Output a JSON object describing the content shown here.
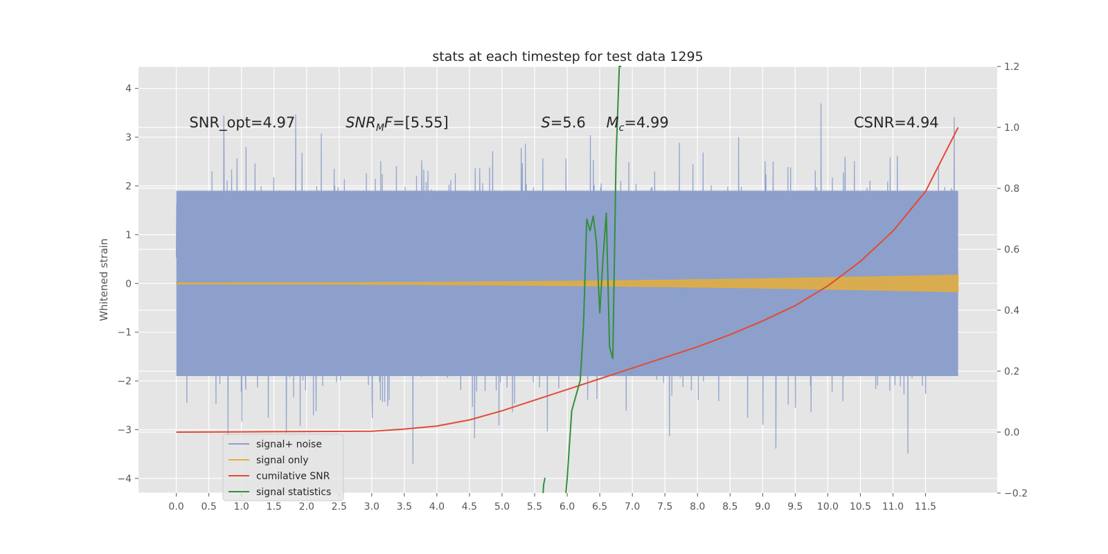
{
  "chart_data": {
    "type": "line",
    "title": "stats at each timestep for test data 1295",
    "ylabel": "Whitened strain",
    "xlabel": "",
    "xlim": [
      -0.58,
      12.6
    ],
    "ylim": [
      -4.3,
      4.45
    ],
    "y2lim": [
      -0.2,
      1.2
    ],
    "xticks": [
      0.0,
      0.5,
      1.0,
      1.5,
      2.0,
      2.5,
      3.0,
      3.5,
      4.0,
      4.5,
      5.0,
      5.5,
      6.0,
      6.5,
      7.0,
      7.5,
      8.0,
      8.5,
      9.0,
      9.5,
      10.0,
      10.5,
      11.0,
      11.5
    ],
    "xtick_labels": [
      "0.0",
      "0.5",
      "1.0",
      "1.5",
      "2.0",
      "2.5",
      "3.0",
      "3.5",
      "4.0",
      "4.5",
      "5.0",
      "5.5",
      "6.0",
      "6.5",
      "7.0",
      "7.5",
      "8.0",
      "8.5",
      "9.0",
      "9.5",
      "10.0",
      "10.5",
      "11.0",
      "11.5"
    ],
    "yticks": [
      -4,
      -3,
      -2,
      -1,
      0,
      1,
      2,
      3,
      4
    ],
    "ytick_labels": [
      "−4",
      "−3",
      "−2",
      "−1",
      "0",
      "1",
      "2",
      "3",
      "4"
    ],
    "y2ticks": [
      -0.2,
      0.0,
      0.2,
      0.4,
      0.6,
      0.8,
      1.0,
      1.2
    ],
    "y2tick_labels": [
      "−0.2",
      "0.0",
      "0.2",
      "0.4",
      "0.6",
      "0.8",
      "1.0",
      "1.2"
    ],
    "grid": true,
    "legend_position": "lower-left",
    "series": [
      {
        "name": "signal+ noise",
        "axis": "left",
        "color": "#8da0cb",
        "kind": "noise",
        "x_range": [
          0.0,
          12.0
        ],
        "typical_range": [
          -2.0,
          2.2
        ],
        "extreme_range": [
          -3.7,
          4.1
        ]
      },
      {
        "name": "signal only",
        "axis": "left",
        "color": "#e5ae38",
        "kind": "chirp",
        "x_range": [
          0.0,
          12.0
        ],
        "amplitude_start": 0.01,
        "amplitude_end": 0.17
      },
      {
        "name": "cumilative SNR",
        "axis": "right",
        "color": "#e24a33",
        "x": [
          0.0,
          1.0,
          2.0,
          3.0,
          3.5,
          4.0,
          4.5,
          5.0,
          5.5,
          6.0,
          6.5,
          7.0,
          7.5,
          8.0,
          8.5,
          9.0,
          9.5,
          10.0,
          10.5,
          11.0,
          11.5,
          12.0
        ],
        "y": [
          0.0,
          0.001,
          0.002,
          0.003,
          0.01,
          0.02,
          0.04,
          0.07,
          0.105,
          0.14,
          0.175,
          0.21,
          0.245,
          0.28,
          0.32,
          0.365,
          0.415,
          0.48,
          0.56,
          0.66,
          0.79,
          1.0
        ]
      },
      {
        "name": "signal statistics",
        "axis": "right",
        "color": "#348e3c",
        "x": [
          5.63,
          5.64,
          5.65,
          5.66,
          null,
          5.98,
          6.0,
          6.07,
          6.2,
          6.25,
          6.3,
          6.35,
          6.4,
          6.45,
          6.5,
          6.55,
          6.6,
          6.65,
          6.7,
          6.75,
          6.8,
          6.83
        ],
        "y": [
          -0.2,
          -0.17,
          -0.16,
          -0.15,
          null,
          -0.2,
          -0.15,
          0.07,
          0.17,
          0.35,
          0.7,
          0.66,
          0.71,
          0.62,
          0.39,
          0.57,
          0.72,
          0.28,
          0.24,
          0.9,
          1.2,
          1.22
        ]
      }
    ],
    "annotations": [
      {
        "x": 0.2,
        "text": "SNR_opt=4.97"
      },
      {
        "x": 2.6,
        "text": "SNR",
        "italic": true,
        "sub": "M",
        "sub_italic": true,
        "rest_italic": "F",
        "rest": "=[5.55]"
      },
      {
        "x": 5.6,
        "text": "S",
        "italic": true,
        "rest": "=5.6"
      },
      {
        "x": 6.6,
        "text": "M",
        "italic": true,
        "sub": "c",
        "sub_italic": true,
        "rest": "=4.99"
      },
      {
        "x": 10.4,
        "text": "CSNR=4.94"
      }
    ],
    "annotation_y": 3.2
  }
}
